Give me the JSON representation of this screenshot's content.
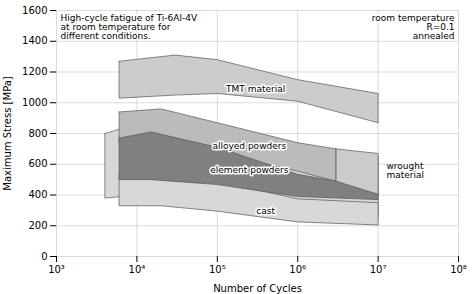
{
  "chart_data": {
    "type": "area",
    "title": "High-cycle fatigue of Ti-6Al-4V\nat room temperature for\ndifferent conditions.",
    "xlabel": "Number of Cycles",
    "ylabel": "Maximum Stress [MPa]",
    "log": "x",
    "xlim": [
      1000,
      100000000
    ],
    "xticks": [
      {
        "value": 1000,
        "label": "10³"
      },
      {
        "value": 10000,
        "label": "10⁴"
      },
      {
        "value": 100000,
        "label": "10⁵"
      },
      {
        "value": 1000000,
        "label": "10⁶"
      },
      {
        "value": 10000000,
        "label": "10⁷"
      },
      {
        "value": 100000000,
        "label": "10⁸"
      }
    ],
    "ylim": [
      0,
      1600
    ],
    "yticks": [
      0,
      200,
      400,
      600,
      800,
      1000,
      1200,
      1400,
      1600
    ],
    "grid": true,
    "series": [
      {
        "color": "#d8d8d8",
        "upper": [
          [
            4000,
            800
          ],
          [
            10000,
            860
          ],
          [
            100000,
            800
          ],
          [
            500000,
            740
          ],
          [
            1000000,
            700
          ],
          [
            5000000,
            660
          ],
          [
            10000000,
            650
          ]
        ],
        "lower": [
          [
            4000,
            380
          ],
          [
            10000,
            400
          ],
          [
            100000,
            360
          ],
          [
            500000,
            320
          ],
          [
            1000000,
            290
          ],
          [
            5000000,
            270
          ],
          [
            10000000,
            255
          ]
        ]
      },
      {
        "color": "#d8d8d8",
        "upper": [
          [
            6000,
            530
          ],
          [
            20000,
            530
          ],
          [
            100000,
            490
          ],
          [
            1000000,
            375
          ],
          [
            10000000,
            350
          ]
        ],
        "lower": [
          [
            6000,
            330
          ],
          [
            20000,
            330
          ],
          [
            100000,
            295
          ],
          [
            1000000,
            225
          ],
          [
            10000000,
            205
          ]
        ]
      },
      {
        "color": "#cccccc",
        "upper": [
          [
            6000,
            1270
          ],
          [
            30000,
            1310
          ],
          [
            100000,
            1280
          ],
          [
            1000000,
            1150
          ],
          [
            10000000,
            1060
          ]
        ],
        "lower": [
          [
            6000,
            1030
          ],
          [
            30000,
            1050
          ],
          [
            100000,
            1060
          ],
          [
            1000000,
            1010
          ],
          [
            10000000,
            870
          ]
        ]
      },
      {
        "color": "#bbbbbb",
        "upper": [
          [
            6000,
            940
          ],
          [
            20000,
            960
          ],
          [
            100000,
            870
          ],
          [
            1000000,
            740
          ],
          [
            3000000,
            700
          ]
        ],
        "lower": [
          [
            6000,
            740
          ],
          [
            20000,
            760
          ],
          [
            100000,
            670
          ],
          [
            1000000,
            555
          ],
          [
            3000000,
            490
          ]
        ]
      },
      {
        "color": "#808080",
        "upper": [
          [
            6000,
            770
          ],
          [
            15000,
            810
          ],
          [
            100000,
            710
          ],
          [
            1000000,
            535
          ],
          [
            10000000,
            440
          ]
        ],
        "lower": [
          [
            6000,
            500
          ],
          [
            15000,
            500
          ],
          [
            100000,
            468
          ],
          [
            1000000,
            390
          ],
          [
            10000000,
            370
          ]
        ]
      },
      {
        "color": "#cccccc",
        "upper": [
          [
            3000000,
            700
          ],
          [
            10000000,
            670
          ]
        ],
        "lower": [
          [
            3000000,
            490
          ],
          [
            10000000,
            405
          ]
        ]
      }
    ],
    "annotations": [
      {
        "text": "TMT material",
        "x": 300000,
        "y": 1090
      },
      {
        "text": "alloyed powders",
        "x": 250000,
        "y": 720
      },
      {
        "text": "element powders",
        "x": 250000,
        "y": 560
      },
      {
        "text": "cast",
        "x": 400000,
        "y": 295
      },
      {
        "text": "wrought\nmaterial",
        "x": 12000000,
        "y": 560
      },
      {
        "text": "room temperature\nR=0.1\nannealed"
      }
    ]
  }
}
